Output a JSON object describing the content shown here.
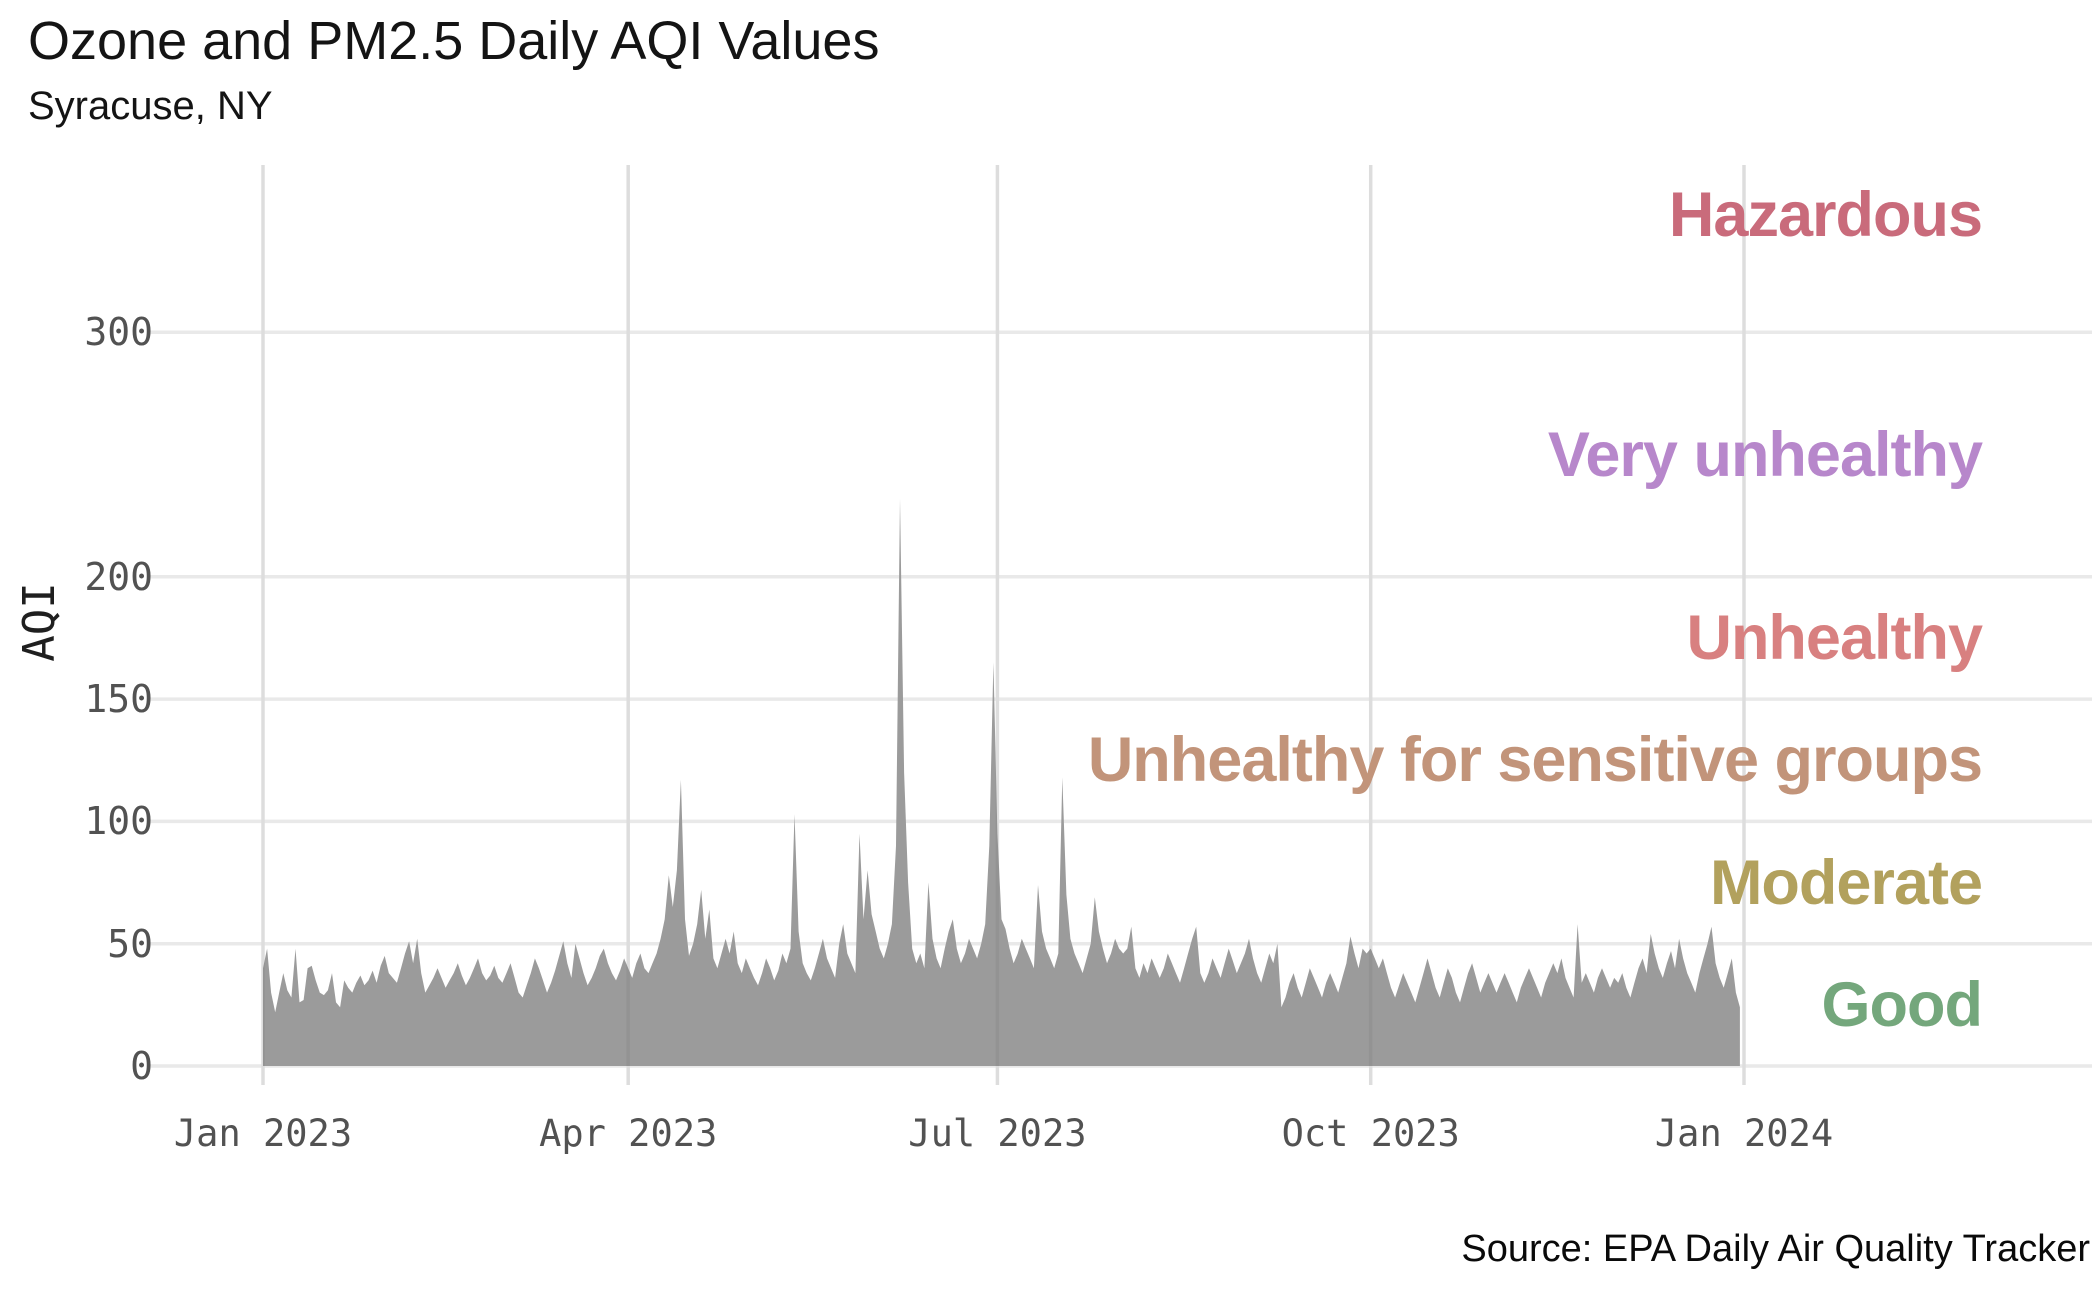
{
  "header": {
    "title": "Ozone and PM2.5 Daily AQI Values",
    "subtitle": "Syracuse, NY"
  },
  "source_credit": "Source: EPA Daily Air Quality Tracker",
  "chart_data": {
    "type": "area",
    "title": "Ozone and PM2.5 Daily AQI Values",
    "subtitle": "Syracuse, NY",
    "xlabel": "",
    "ylabel": "AQI",
    "x_start_date": "2023-01-01",
    "x_end_date": "2023-12-31",
    "frequency": "daily",
    "x_tick_labels": [
      "Jan 2023",
      "Apr 2023",
      "Jul 2023",
      "Oct 2023",
      "Jan 2024"
    ],
    "x_tick_day_index": [
      0,
      90,
      181,
      273,
      365
    ],
    "y_tick_values": [
      0,
      50,
      100,
      150,
      200,
      300
    ],
    "ylim": [
      0,
      380
    ],
    "grid": true,
    "legend": "none",
    "area_color": "#9b9b9b",
    "gridline_color": "#e9e9e9",
    "tick_text_color": "#525252",
    "series_name": "Combined Ozone and PM2.5 daily AQI",
    "values": [
      40,
      48,
      30,
      22,
      30,
      38,
      31,
      28,
      48,
      26,
      27,
      40,
      41,
      35,
      30,
      29,
      31,
      38,
      26,
      24,
      35,
      32,
      30,
      34,
      37,
      33,
      35,
      39,
      34,
      41,
      45,
      38,
      36,
      34,
      40,
      46,
      51,
      42,
      52,
      38,
      30,
      33,
      36,
      40,
      36,
      32,
      35,
      38,
      42,
      37,
      33,
      36,
      40,
      44,
      38,
      35,
      37,
      41,
      36,
      34,
      38,
      42,
      36,
      30,
      28,
      33,
      38,
      44,
      40,
      35,
      30,
      34,
      39,
      45,
      51,
      42,
      36,
      50,
      44,
      38,
      33,
      36,
      40,
      45,
      48,
      42,
      38,
      35,
      39,
      44,
      40,
      36,
      42,
      46,
      40,
      38,
      42,
      46,
      52,
      60,
      78,
      65,
      80,
      117,
      60,
      45,
      50,
      58,
      72,
      52,
      64,
      44,
      40,
      46,
      52,
      46,
      55,
      42,
      38,
      44,
      40,
      36,
      33,
      38,
      44,
      40,
      35,
      39,
      46,
      42,
      48,
      103,
      55,
      42,
      38,
      35,
      40,
      46,
      52,
      44,
      40,
      36,
      50,
      58,
      46,
      42,
      38,
      95,
      60,
      80,
      62,
      55,
      48,
      44,
      50,
      58,
      90,
      232,
      120,
      75,
      48,
      42,
      46,
      40,
      75,
      52,
      44,
      40,
      48,
      55,
      60,
      48,
      42,
      46,
      52,
      48,
      44,
      50,
      58,
      90,
      165,
      95,
      60,
      56,
      48,
      42,
      46,
      52,
      48,
      44,
      40,
      74,
      55,
      48,
      44,
      40,
      46,
      118,
      70,
      52,
      46,
      42,
      38,
      44,
      50,
      69,
      55,
      48,
      42,
      46,
      52,
      48,
      46,
      48,
      57,
      40,
      36,
      42,
      38,
      44,
      40,
      36,
      40,
      46,
      42,
      38,
      34,
      40,
      46,
      52,
      57,
      38,
      34,
      38,
      44,
      40,
      36,
      42,
      48,
      43,
      38,
      42,
      46,
      52,
      44,
      38,
      34,
      40,
      46,
      42,
      50,
      24,
      28,
      34,
      38,
      32,
      28,
      34,
      40,
      36,
      32,
      28,
      34,
      38,
      34,
      30,
      36,
      42,
      53,
      46,
      40,
      48,
      46,
      48,
      44,
      40,
      44,
      38,
      32,
      28,
      33,
      38,
      34,
      30,
      26,
      32,
      38,
      44,
      38,
      32,
      28,
      34,
      40,
      36,
      30,
      26,
      32,
      38,
      42,
      36,
      30,
      34,
      38,
      34,
      30,
      34,
      38,
      34,
      30,
      26,
      32,
      36,
      40,
      36,
      32,
      28,
      34,
      38,
      42,
      38,
      44,
      36,
      32,
      28,
      58,
      34,
      38,
      34,
      30,
      36,
      40,
      36,
      32,
      36,
      34,
      38,
      32,
      28,
      34,
      40,
      44,
      38,
      54,
      46,
      40,
      36,
      42,
      47,
      40,
      52,
      44,
      38,
      34,
      30,
      38,
      44,
      50,
      57,
      42,
      36,
      32,
      38,
      44,
      30,
      24
    ],
    "aqi_bands": [
      {
        "label": "Good",
        "color": "#74a77c",
        "min": 0,
        "max": 50
      },
      {
        "label": "Moderate",
        "color": "#b2a15d",
        "min": 50,
        "max": 100
      },
      {
        "label": "Unhealthy for sensitive groups",
        "color": "#c2947a",
        "min": 100,
        "max": 150
      },
      {
        "label": "Unhealthy",
        "color": "#d88080",
        "min": 150,
        "max": 200
      },
      {
        "label": "Very unhealthy",
        "color": "#b787cb",
        "min": 200,
        "max": 300
      },
      {
        "label": "Hazardous",
        "color": "#c96b7b",
        "min": 300,
        "max": 500
      }
    ],
    "source": "Source: EPA Daily Air Quality Tracker"
  }
}
